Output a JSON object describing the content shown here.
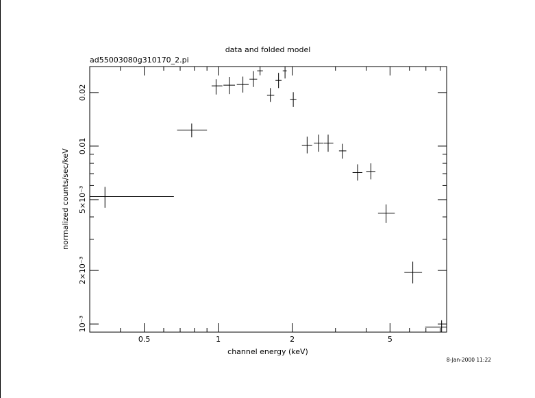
{
  "chart_data": {
    "type": "scatter",
    "title": "data and folded model",
    "subtitle": "ad55003080g310170_2.pi",
    "xlabel": "channel energy (keV)",
    "ylabel": "normalized counts/sec/keV",
    "timestamp": "8-Jan-2000 11:22",
    "x_scale": "log",
    "y_scale": "log",
    "xlim": [
      0.3,
      8.5
    ],
    "ylim": [
      0.0009,
      0.028
    ],
    "x_tick_labels": [
      "0.5",
      "1",
      "2",
      "5"
    ],
    "y_tick_labels": [
      "10⁻³",
      "2×10⁻³",
      "5×10⁻³",
      "0.01",
      "0.02"
    ],
    "grid": false,
    "series": [
      {
        "points": [
          {
            "x": 0.346,
            "xlo": 0.3,
            "xhi": 0.66,
            "y": 0.0052,
            "ylo": 0.0045,
            "yhi": 0.0059
          },
          {
            "x": 0.78,
            "xlo": 0.68,
            "xhi": 0.9,
            "y": 0.0123,
            "ylo": 0.0112,
            "yhi": 0.0134
          },
          {
            "x": 0.98,
            "xlo": 0.94,
            "xhi": 1.04,
            "y": 0.0218,
            "ylo": 0.0195,
            "yhi": 0.0238
          },
          {
            "x": 1.11,
            "xlo": 1.05,
            "xhi": 1.17,
            "y": 0.022,
            "ylo": 0.0196,
            "yhi": 0.0245
          },
          {
            "x": 1.26,
            "xlo": 1.19,
            "xhi": 1.33,
            "y": 0.0222,
            "ylo": 0.02,
            "yhi": 0.0246
          },
          {
            "x": 1.39,
            "xlo": 1.34,
            "xhi": 1.44,
            "y": 0.0238,
            "ylo": 0.0215,
            "yhi": 0.0264
          },
          {
            "x": 1.48,
            "xlo": 1.44,
            "xhi": 1.52,
            "y": 0.0265,
            "ylo": 0.025,
            "yhi": 0.028
          },
          {
            "x": 1.63,
            "xlo": 1.58,
            "xhi": 1.69,
            "y": 0.0193,
            "ylo": 0.0177,
            "yhi": 0.0212
          },
          {
            "x": 1.76,
            "xlo": 1.71,
            "xhi": 1.81,
            "y": 0.0234,
            "ylo": 0.0212,
            "yhi": 0.0258
          },
          {
            "x": 1.87,
            "xlo": 1.83,
            "xhi": 1.9,
            "y": 0.0265,
            "ylo": 0.024,
            "yhi": 0.028
          },
          {
            "x": 2.02,
            "xlo": 1.96,
            "xhi": 2.08,
            "y": 0.0183,
            "ylo": 0.0166,
            "yhi": 0.0201
          },
          {
            "x": 2.3,
            "xlo": 2.19,
            "xhi": 2.41,
            "y": 0.0101,
            "ylo": 0.0091,
            "yhi": 0.0113
          },
          {
            "x": 2.56,
            "xlo": 2.45,
            "xhi": 2.68,
            "y": 0.0104,
            "ylo": 0.0093,
            "yhi": 0.0116
          },
          {
            "x": 2.8,
            "xlo": 2.69,
            "xhi": 2.94,
            "y": 0.0104,
            "ylo": 0.0093,
            "yhi": 0.0116
          },
          {
            "x": 3.2,
            "xlo": 3.1,
            "xhi": 3.32,
            "y": 0.0094,
            "ylo": 0.0085,
            "yhi": 0.0103
          },
          {
            "x": 3.69,
            "xlo": 3.52,
            "xhi": 3.86,
            "y": 0.0071,
            "ylo": 0.0064,
            "yhi": 0.0079
          },
          {
            "x": 4.18,
            "xlo": 4.0,
            "xhi": 4.36,
            "y": 0.0072,
            "ylo": 0.0065,
            "yhi": 0.008
          },
          {
            "x": 4.82,
            "xlo": 4.47,
            "xhi": 5.23,
            "y": 0.0042,
            "ylo": 0.0037,
            "yhi": 0.0047
          },
          {
            "x": 6.19,
            "xlo": 5.72,
            "xhi": 6.75,
            "y": 0.00195,
            "ylo": 0.00169,
            "yhi": 0.00224
          },
          {
            "x": 8.11,
            "xlo": 6.95,
            "xhi": 8.5,
            "y": 0.00096,
            "ylo": 0.00087,
            "yhi": 0.00105
          }
        ]
      }
    ]
  }
}
